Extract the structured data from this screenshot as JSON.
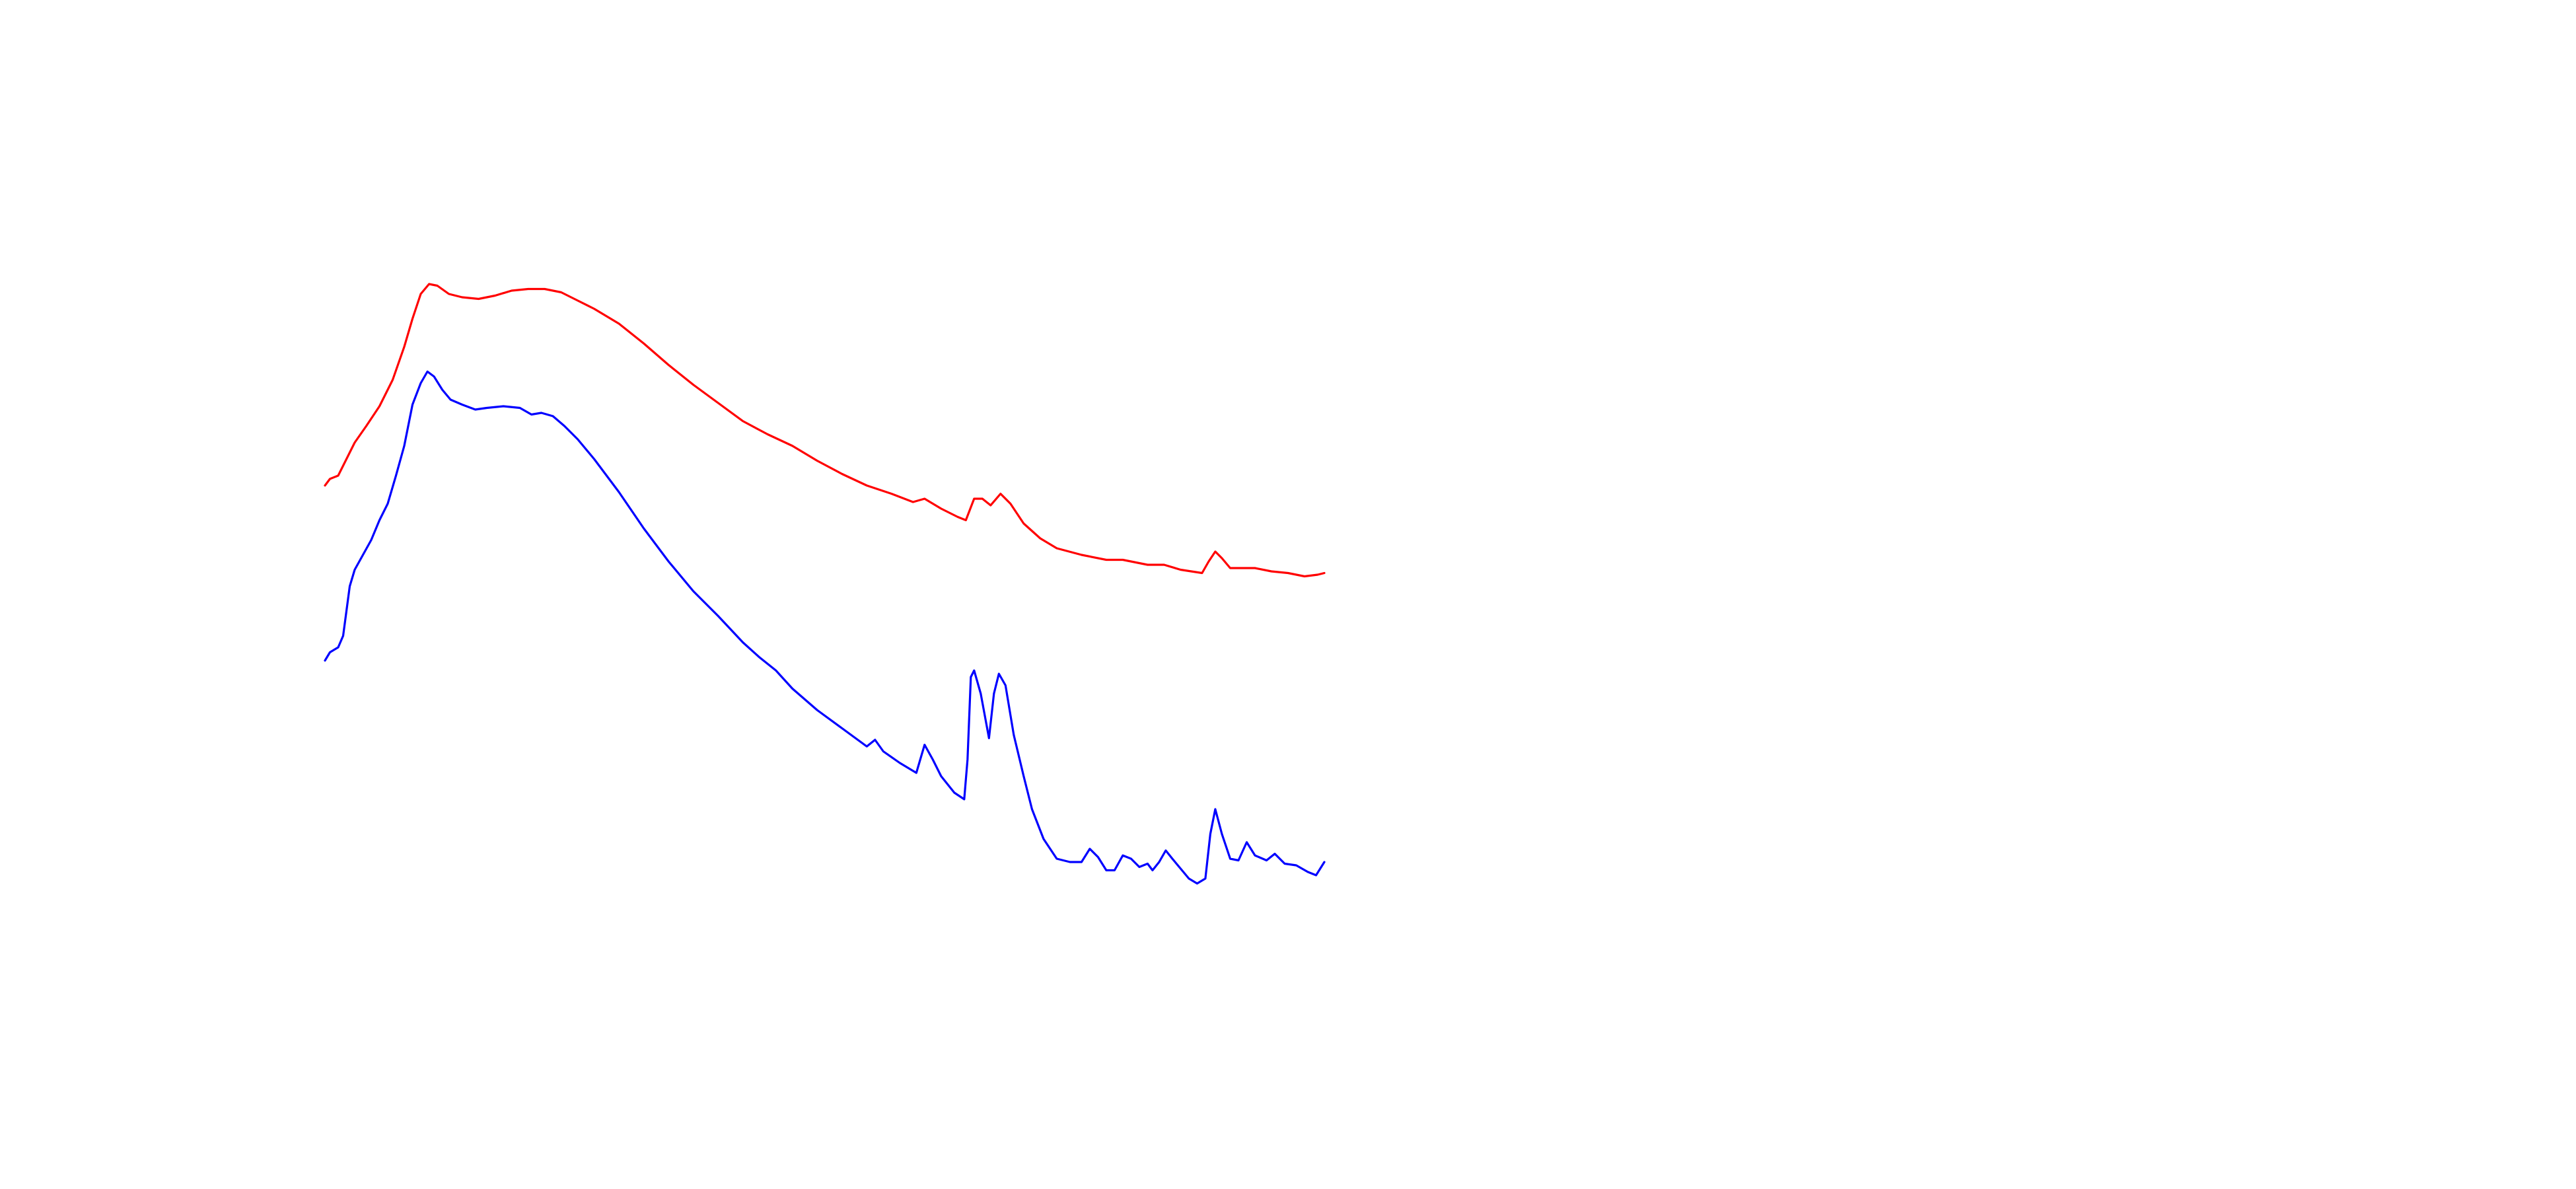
{
  "chart_data": {
    "type": "line",
    "xlim": [
      0,
      605
    ],
    "ylim": [
      0,
      380
    ],
    "series": [
      {
        "color": "#ff0000",
        "x": [
          0,
          3,
          8,
          13,
          18,
          25,
          33,
          41,
          48,
          53,
          58,
          63,
          68,
          75,
          83,
          93,
          103,
          113,
          123,
          133,
          143,
          153,
          163,
          178,
          193,
          208,
          223,
          238,
          253,
          268,
          283,
          298,
          313,
          328,
          343,
          356,
          363,
          373,
          383,
          388,
          393,
          398,
          403,
          409,
          415,
          423,
          433,
          443,
          458,
          473,
          483,
          498,
          508,
          518,
          531,
          535,
          539,
          543,
          548,
          555,
          563,
          573,
          583,
          593,
          601,
          605
        ],
        "values": [
          246,
          250,
          252,
          262,
          272,
          282,
          294,
          310,
          330,
          347,
          362,
          368,
          367,
          362,
          360,
          359,
          361,
          364,
          365,
          365,
          363,
          358,
          353,
          344,
          332,
          319,
          307,
          296,
          285,
          277,
          270,
          261,
          253,
          246,
          241,
          236,
          238,
          232,
          227,
          225,
          238,
          238,
          234,
          241,
          235,
          223,
          214,
          208,
          204,
          201,
          201,
          198,
          198,
          195,
          193,
          200,
          206,
          202,
          196,
          196,
          196,
          194,
          193,
          191,
          192,
          193
        ]
      },
      {
        "color": "#0000ff",
        "x": [
          0,
          3,
          8,
          11,
          13,
          15,
          18,
          23,
          28,
          33,
          38,
          43,
          48,
          53,
          58,
          62,
          66,
          71,
          76,
          83,
          91,
          98,
          108,
          118,
          125,
          131,
          138,
          145,
          153,
          163,
          178,
          193,
          208,
          223,
          238,
          253,
          263,
          273,
          283,
          298,
          313,
          328,
          333,
          338,
          348,
          358,
          363,
          368,
          373,
          381,
          387,
          389,
          391,
          393,
          397,
          402,
          405,
          408,
          412,
          417,
          423,
          428,
          435,
          443,
          451,
          458,
          463,
          468,
          473,
          478,
          483,
          488,
          493,
          498,
          501,
          505,
          509,
          513,
          518,
          523,
          528,
          533,
          536,
          539,
          543,
          548,
          553,
          558,
          563,
          570,
          575,
          581,
          588,
          595,
          600,
          605
        ],
        "values": [
          140,
          145,
          148,
          155,
          170,
          185,
          195,
          204,
          213,
          225,
          235,
          252,
          270,
          295,
          308,
          315,
          312,
          304,
          298,
          295,
          292,
          293,
          294,
          293,
          289,
          290,
          288,
          282,
          274,
          262,
          242,
          220,
          200,
          182,
          167,
          151,
          142,
          134,
          123,
          110,
          99,
          88,
          92,
          85,
          78,
          72,
          89,
          80,
          70,
          60,
          56,
          80,
          130,
          134,
          120,
          93,
          120,
          132,
          125,
          95,
          70,
          50,
          32,
          20,
          18,
          18,
          26,
          21,
          13,
          13,
          22,
          20,
          15,
          17,
          13,
          18,
          25,
          20,
          14,
          8,
          5,
          8,
          35,
          50,
          35,
          20,
          19,
          30,
          22,
          19,
          23,
          17,
          16,
          12,
          10,
          18
        ]
      }
    ]
  }
}
